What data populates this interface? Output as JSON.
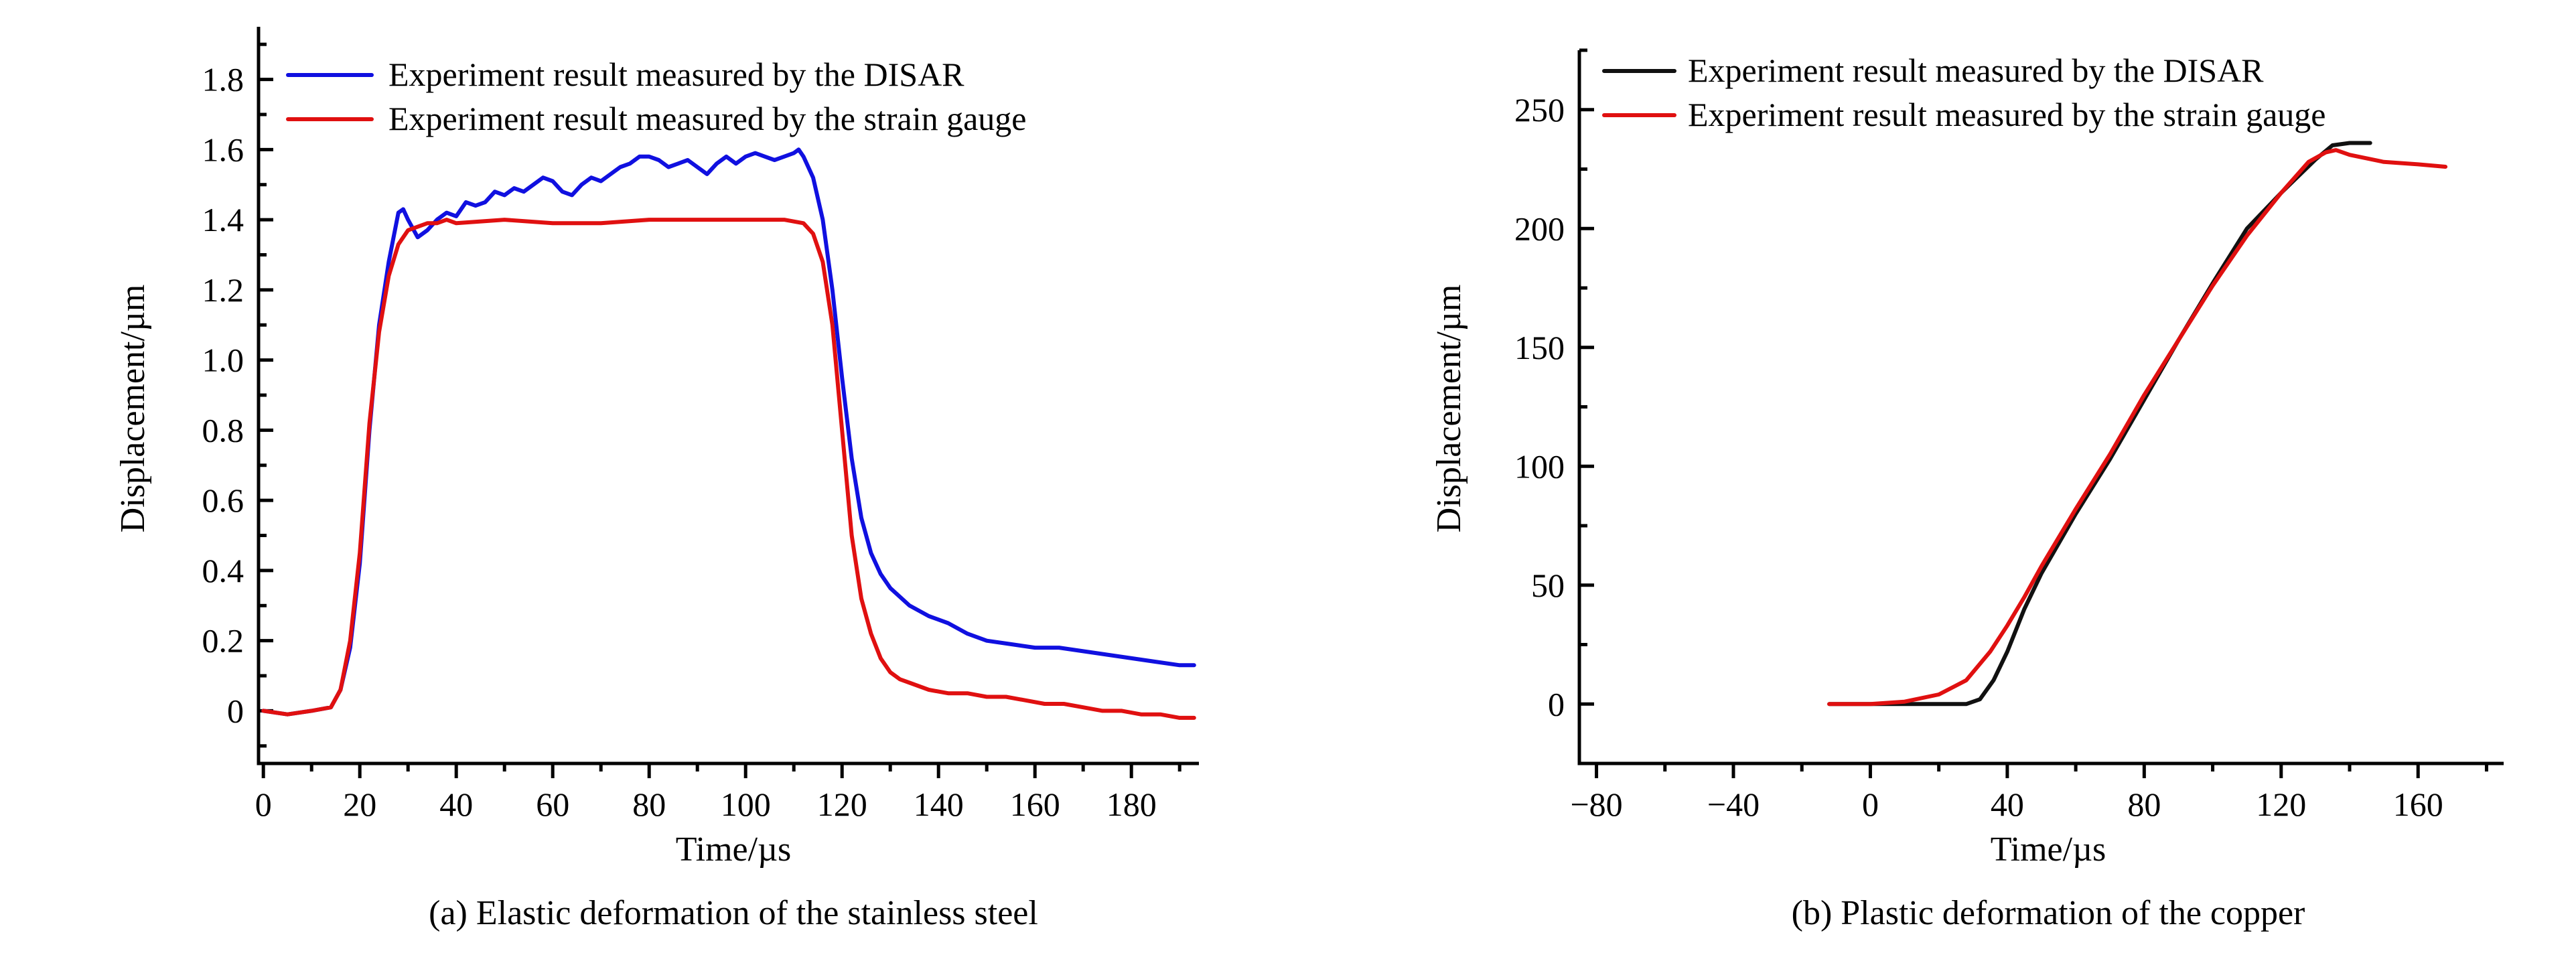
{
  "chart_data": [
    {
      "type": "line",
      "caption": "(a) Elastic deformation of the stainless steel",
      "xlabel": "Time/µs",
      "ylabel": "Displacement/µm",
      "xlim": [
        -1,
        194
      ],
      "ylim": [
        -0.15,
        1.95
      ],
      "xticks": [
        0,
        20,
        40,
        60,
        80,
        100,
        120,
        140,
        160,
        180
      ],
      "xtick_labels": [
        "0",
        "20",
        "40",
        "60",
        "80",
        "100",
        "120",
        "140",
        "160",
        "180"
      ],
      "yticks": [
        0,
        0.2,
        0.4,
        0.6,
        0.8,
        1.0,
        1.2,
        1.4,
        1.6,
        1.8
      ],
      "ytick_labels": [
        "0",
        "0.2",
        "0.4",
        "0.6",
        "0.8",
        "1.0",
        "1.2",
        "1.4",
        "1.6",
        "1.8"
      ],
      "legend_position": "top-left",
      "series": [
        {
          "name": "Experiment result measured by the DISAR",
          "color": "#1010e0",
          "points": [
            [
              0,
              0.0
            ],
            [
              5,
              -0.01
            ],
            [
              10,
              0.0
            ],
            [
              14,
              0.01
            ],
            [
              16,
              0.06
            ],
            [
              18,
              0.18
            ],
            [
              20,
              0.42
            ],
            [
              22,
              0.8
            ],
            [
              24,
              1.1
            ],
            [
              26,
              1.28
            ],
            [
              28,
              1.42
            ],
            [
              29,
              1.43
            ],
            [
              30,
              1.4
            ],
            [
              32,
              1.35
            ],
            [
              34,
              1.37
            ],
            [
              36,
              1.4
            ],
            [
              38,
              1.42
            ],
            [
              40,
              1.41
            ],
            [
              42,
              1.45
            ],
            [
              44,
              1.44
            ],
            [
              46,
              1.45
            ],
            [
              48,
              1.48
            ],
            [
              50,
              1.47
            ],
            [
              52,
              1.49
            ],
            [
              54,
              1.48
            ],
            [
              56,
              1.5
            ],
            [
              58,
              1.52
            ],
            [
              60,
              1.51
            ],
            [
              62,
              1.48
            ],
            [
              64,
              1.47
            ],
            [
              66,
              1.5
            ],
            [
              68,
              1.52
            ],
            [
              70,
              1.51
            ],
            [
              72,
              1.53
            ],
            [
              74,
              1.55
            ],
            [
              76,
              1.56
            ],
            [
              78,
              1.58
            ],
            [
              80,
              1.58
            ],
            [
              82,
              1.57
            ],
            [
              84,
              1.55
            ],
            [
              86,
              1.56
            ],
            [
              88,
              1.57
            ],
            [
              90,
              1.55
            ],
            [
              92,
              1.53
            ],
            [
              94,
              1.56
            ],
            [
              96,
              1.58
            ],
            [
              98,
              1.56
            ],
            [
              100,
              1.58
            ],
            [
              102,
              1.59
            ],
            [
              104,
              1.58
            ],
            [
              106,
              1.57
            ],
            [
              108,
              1.58
            ],
            [
              110,
              1.59
            ],
            [
              111,
              1.6
            ],
            [
              112,
              1.58
            ],
            [
              114,
              1.52
            ],
            [
              116,
              1.4
            ],
            [
              118,
              1.2
            ],
            [
              120,
              0.95
            ],
            [
              122,
              0.72
            ],
            [
              124,
              0.55
            ],
            [
              126,
              0.45
            ],
            [
              128,
              0.39
            ],
            [
              130,
              0.35
            ],
            [
              134,
              0.3
            ],
            [
              138,
              0.27
            ],
            [
              142,
              0.25
            ],
            [
              146,
              0.22
            ],
            [
              150,
              0.2
            ],
            [
              155,
              0.19
            ],
            [
              160,
              0.18
            ],
            [
              165,
              0.18
            ],
            [
              170,
              0.17
            ],
            [
              175,
              0.16
            ],
            [
              180,
              0.15
            ],
            [
              185,
              0.14
            ],
            [
              190,
              0.13
            ],
            [
              193,
              0.13
            ]
          ]
        },
        {
          "name": "Experiment result measured by the strain gauge",
          "color": "#e01010",
          "points": [
            [
              0,
              0.0
            ],
            [
              5,
              -0.01
            ],
            [
              10,
              0.0
            ],
            [
              14,
              0.01
            ],
            [
              16,
              0.06
            ],
            [
              18,
              0.2
            ],
            [
              20,
              0.45
            ],
            [
              22,
              0.82
            ],
            [
              24,
              1.08
            ],
            [
              26,
              1.24
            ],
            [
              28,
              1.33
            ],
            [
              30,
              1.37
            ],
            [
              32,
              1.38
            ],
            [
              34,
              1.39
            ],
            [
              36,
              1.39
            ],
            [
              38,
              1.4
            ],
            [
              40,
              1.39
            ],
            [
              50,
              1.4
            ],
            [
              60,
              1.39
            ],
            [
              70,
              1.39
            ],
            [
              80,
              1.4
            ],
            [
              90,
              1.4
            ],
            [
              100,
              1.4
            ],
            [
              108,
              1.4
            ],
            [
              112,
              1.39
            ],
            [
              114,
              1.36
            ],
            [
              116,
              1.28
            ],
            [
              118,
              1.1
            ],
            [
              120,
              0.8
            ],
            [
              122,
              0.5
            ],
            [
              124,
              0.32
            ],
            [
              126,
              0.22
            ],
            [
              128,
              0.15
            ],
            [
              130,
              0.11
            ],
            [
              132,
              0.09
            ],
            [
              134,
              0.08
            ],
            [
              138,
              0.06
            ],
            [
              142,
              0.05
            ],
            [
              146,
              0.05
            ],
            [
              150,
              0.04
            ],
            [
              154,
              0.04
            ],
            [
              158,
              0.03
            ],
            [
              162,
              0.02
            ],
            [
              166,
              0.02
            ],
            [
              170,
              0.01
            ],
            [
              174,
              0.0
            ],
            [
              178,
              0.0
            ],
            [
              182,
              -0.01
            ],
            [
              186,
              -0.01
            ],
            [
              190,
              -0.02
            ],
            [
              193,
              -0.02
            ]
          ]
        }
      ]
    },
    {
      "type": "line",
      "caption": "(b) Plastic deformation of the copper",
      "xlabel": "Time/µs",
      "ylabel": "Displacement/µm",
      "xlim": [
        -85,
        185
      ],
      "ylim": [
        -25,
        275
      ],
      "xticks": [
        -80,
        -40,
        0,
        40,
        80,
        120,
        160
      ],
      "xtick_labels": [
        "−80",
        "−40",
        "0",
        "40",
        "80",
        "120",
        "160"
      ],
      "yticks": [
        0,
        50,
        100,
        150,
        200,
        250
      ],
      "ytick_labels": [
        "0",
        "50",
        "100",
        "150",
        "200",
        "250"
      ],
      "legend_position": "top-right",
      "series": [
        {
          "name": "Experiment result measured by the DISAR",
          "color": "#111111",
          "points": [
            [
              -12,
              0
            ],
            [
              0,
              0
            ],
            [
              20,
              0
            ],
            [
              28,
              0
            ],
            [
              32,
              2
            ],
            [
              36,
              10
            ],
            [
              40,
              22
            ],
            [
              45,
              40
            ],
            [
              50,
              55
            ],
            [
              60,
              80
            ],
            [
              70,
              103
            ],
            [
              80,
              128
            ],
            [
              90,
              153
            ],
            [
              100,
              177
            ],
            [
              110,
              200
            ],
            [
              120,
              215
            ],
            [
              130,
              229
            ],
            [
              135,
              235
            ],
            [
              140,
              236
            ],
            [
              146,
              236
            ]
          ]
        },
        {
          "name": "Experiment result measured by the strain gauge",
          "color": "#e01010",
          "points": [
            [
              -12,
              0
            ],
            [
              0,
              0
            ],
            [
              10,
              1
            ],
            [
              20,
              4
            ],
            [
              28,
              10
            ],
            [
              35,
              22
            ],
            [
              40,
              33
            ],
            [
              45,
              45
            ],
            [
              50,
              58
            ],
            [
              60,
              82
            ],
            [
              70,
              105
            ],
            [
              80,
              130
            ],
            [
              90,
              153
            ],
            [
              100,
              176
            ],
            [
              110,
              197
            ],
            [
              120,
              215
            ],
            [
              128,
              228
            ],
            [
              133,
              232
            ],
            [
              136,
              233
            ],
            [
              140,
              231
            ],
            [
              150,
              228
            ],
            [
              160,
              227
            ],
            [
              168,
              226
            ]
          ]
        }
      ]
    }
  ]
}
